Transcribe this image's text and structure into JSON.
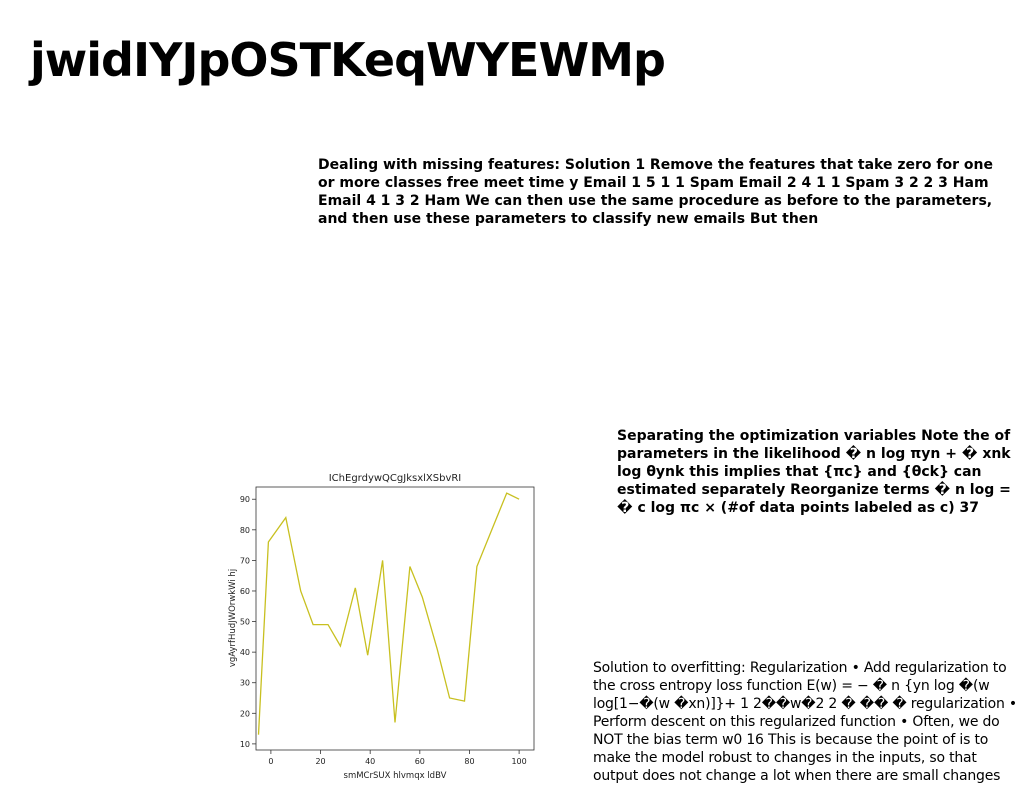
{
  "page": {
    "title": "jwidIYJpOSTKeqWYEWMp"
  },
  "blocks": [
    {
      "text": "Dealing with missing features: Solution 1 Remove the features that take zero for one or more classes free meet time y Email 1 5 1 1 Spam Email 2 4 1 1 Spam 3 2 2 3 Ham Email 4 1 3 2 Ham We can then use the same procedure as before to the parameters, and then use these parameters to classify new emails But then"
    },
    {
      "text": "Separating the optimization variables Note the of parameters in the likelihood � n log πyn + � xnk log θynk this implies that {πc} and {θck} can estimated separately Reorganize terms � n log = � c log πc × (#of data points labeled as c) 37"
    },
    {
      "text": "Solution to overfitting: Regularization • Add regularization to the cross entropy loss function E(w) = − � n {yn log �(w log[1−�(w �xn)]}+ 1 2��w�2 2 � �� � regularization • Perform descent on this regularized function • Often, we do NOT the bias term w0 16 This is because the point of is to make the model robust to changes in the inputs, so that output does not change a lot when there are small changes"
    }
  ],
  "chart_data": {
    "type": "line",
    "title": "IChEgrdywQCgJksxlXSbvRI",
    "xlabel": "smMCrSUX hlvmqx ldBV",
    "ylabel": "vgAyrfHudJWOrwkWi hj",
    "xlim": [
      -6,
      106
    ],
    "ylim": [
      8,
      94
    ],
    "xticks": [
      0,
      20,
      40,
      60,
      80,
      100
    ],
    "yticks": [
      10,
      20,
      30,
      40,
      50,
      60,
      70,
      80,
      90
    ],
    "grid": false,
    "line_color": "#c8c020",
    "series": [
      {
        "x": [
          -5,
          -1,
          6,
          12,
          17,
          23,
          28,
          34,
          39,
          45,
          50,
          56,
          61,
          67,
          72,
          78,
          83,
          89,
          95,
          100
        ],
        "y": [
          13,
          76,
          84,
          60,
          49,
          49,
          42,
          61,
          39,
          70,
          17,
          68,
          58,
          41,
          25,
          24,
          68,
          80,
          92,
          90
        ]
      }
    ]
  }
}
